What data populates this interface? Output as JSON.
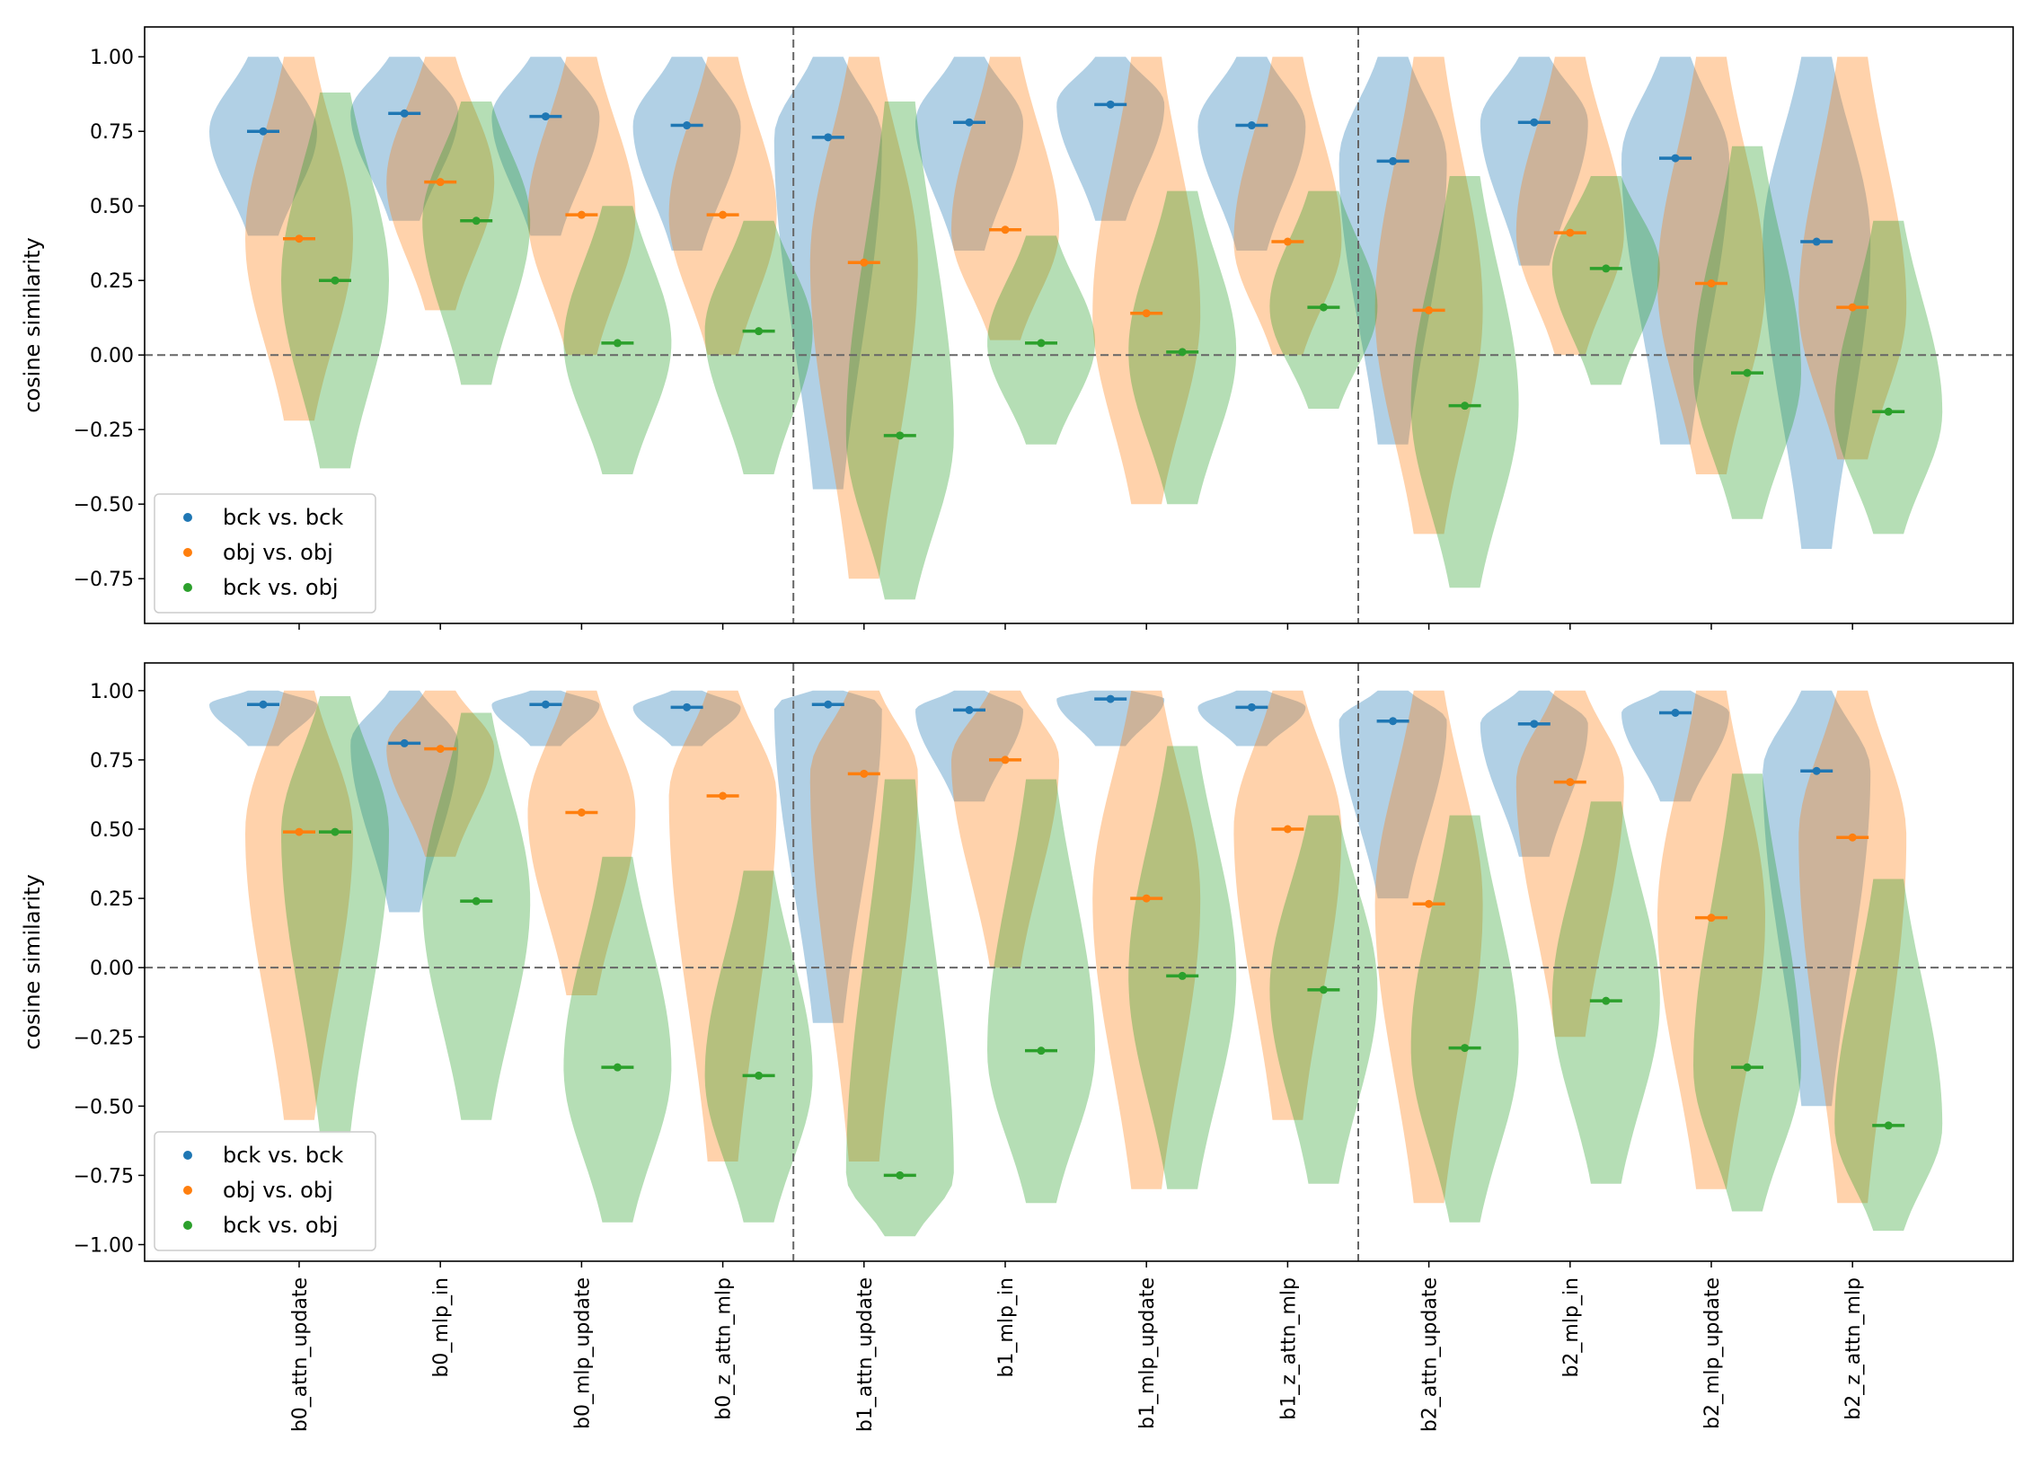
{
  "chart_data": [
    {
      "type": "violin",
      "panel": "top",
      "ylabel": "cosine similarity",
      "ylim": [
        -0.9,
        1.1
      ],
      "yticks": [
        -0.75,
        -0.5,
        -0.25,
        0.0,
        0.25,
        0.5,
        0.75,
        1.0
      ],
      "ytick_labels": [
        "−0.75",
        "−0.50",
        "−0.25",
        "0.00",
        "0.25",
        "0.50",
        "0.75",
        "1.00"
      ],
      "reference_line": 0.0,
      "group_separators_after": [
        4,
        8
      ],
      "legend": {
        "placement": "lower-left",
        "entries": [
          "bck vs. bck",
          "obj vs. obj",
          "bck vs. obj"
        ]
      },
      "series": [
        {
          "name": "bck vs. bck",
          "color": "#1f77b4",
          "means": [
            0.75,
            0.81,
            0.8,
            0.77,
            0.73,
            0.78,
            0.84,
            0.77,
            0.65,
            0.78,
            0.66,
            0.38
          ],
          "ranges": [
            [
              0.4,
              1.0
            ],
            [
              0.45,
              1.0
            ],
            [
              0.4,
              1.0
            ],
            [
              0.35,
              1.0
            ],
            [
              -0.45,
              1.0
            ],
            [
              0.35,
              1.0
            ],
            [
              0.45,
              1.0
            ],
            [
              0.35,
              1.0
            ],
            [
              -0.3,
              1.0
            ],
            [
              0.3,
              1.0
            ],
            [
              -0.3,
              1.0
            ],
            [
              -0.65,
              1.0
            ]
          ]
        },
        {
          "name": "obj vs. obj",
          "color": "#ff7f0e",
          "means": [
            0.39,
            0.58,
            0.47,
            0.47,
            0.31,
            0.42,
            0.14,
            0.38,
            0.15,
            0.41,
            0.24,
            0.16
          ],
          "ranges": [
            [
              -0.22,
              1.0
            ],
            [
              0.15,
              1.0
            ],
            [
              0.0,
              1.0
            ],
            [
              0.0,
              1.0
            ],
            [
              -0.75,
              1.0
            ],
            [
              0.05,
              1.0
            ],
            [
              -0.5,
              1.0
            ],
            [
              0.0,
              1.0
            ],
            [
              -0.6,
              1.0
            ],
            [
              0.0,
              1.0
            ],
            [
              -0.4,
              1.0
            ],
            [
              -0.35,
              1.0
            ]
          ]
        },
        {
          "name": "bck vs. obj",
          "color": "#2ca02c",
          "means": [
            0.25,
            0.45,
            0.04,
            0.08,
            -0.27,
            0.04,
            0.01,
            0.16,
            -0.17,
            0.29,
            -0.06,
            -0.19
          ],
          "ranges": [
            [
              -0.38,
              0.88
            ],
            [
              -0.1,
              0.85
            ],
            [
              -0.4,
              0.5
            ],
            [
              -0.4,
              0.45
            ],
            [
              -0.82,
              0.85
            ],
            [
              -0.3,
              0.4
            ],
            [
              -0.5,
              0.55
            ],
            [
              -0.18,
              0.55
            ],
            [
              -0.78,
              0.6
            ],
            [
              -0.1,
              0.6
            ],
            [
              -0.55,
              0.7
            ],
            [
              -0.6,
              0.45
            ]
          ]
        }
      ]
    },
    {
      "type": "violin",
      "panel": "bottom",
      "ylabel": "cosine similarity",
      "ylim": [
        -1.06,
        1.1
      ],
      "yticks": [
        -1.0,
        -0.75,
        -0.5,
        -0.25,
        0.0,
        0.25,
        0.5,
        0.75,
        1.0
      ],
      "ytick_labels": [
        "−1.00",
        "−0.75",
        "−0.50",
        "−0.25",
        "0.00",
        "0.25",
        "0.50",
        "0.75",
        "1.00"
      ],
      "reference_line": 0.0,
      "group_separators_after": [
        4,
        8
      ],
      "legend": {
        "placement": "lower-left",
        "entries": [
          "bck vs. bck",
          "obj vs. obj",
          "bck vs. obj"
        ]
      },
      "categories": [
        "b0_attn_update",
        "b0_mlp_in",
        "b0_mlp_update",
        "b0_z_attn_mlp",
        "b1_attn_update",
        "b1_mlp_in",
        "b1_mlp_update",
        "b1_z_attn_mlp",
        "b2_attn_update",
        "b2_mlp_in",
        "b2_mlp_update",
        "b2_z_attn_mlp"
      ],
      "series": [
        {
          "name": "bck vs. bck",
          "color": "#1f77b4",
          "means": [
            0.95,
            0.81,
            0.95,
            0.94,
            0.95,
            0.93,
            0.97,
            0.94,
            0.89,
            0.88,
            0.92,
            0.71
          ],
          "ranges": [
            [
              0.8,
              1.0
            ],
            [
              0.2,
              1.0
            ],
            [
              0.8,
              1.0
            ],
            [
              0.8,
              1.0
            ],
            [
              -0.2,
              1.0
            ],
            [
              0.6,
              1.0
            ],
            [
              0.8,
              1.0
            ],
            [
              0.8,
              1.0
            ],
            [
              0.25,
              1.0
            ],
            [
              0.4,
              1.0
            ],
            [
              0.6,
              1.0
            ],
            [
              -0.5,
              1.0
            ]
          ]
        },
        {
          "name": "obj vs. obj",
          "color": "#ff7f0e",
          "means": [
            0.49,
            0.79,
            0.56,
            0.62,
            0.7,
            0.75,
            0.25,
            0.5,
            0.23,
            0.67,
            0.18,
            0.47
          ],
          "ranges": [
            [
              -0.55,
              1.0
            ],
            [
              0.4,
              1.0
            ],
            [
              -0.1,
              1.0
            ],
            [
              -0.7,
              1.0
            ],
            [
              -0.7,
              1.0
            ],
            [
              0.0,
              1.0
            ],
            [
              -0.8,
              1.0
            ],
            [
              -0.55,
              1.0
            ],
            [
              -0.85,
              1.0
            ],
            [
              -0.25,
              1.0
            ],
            [
              -0.8,
              1.0
            ],
            [
              -0.85,
              1.0
            ]
          ]
        },
        {
          "name": "bck vs. obj",
          "color": "#2ca02c",
          "means": [
            0.49,
            0.24,
            -0.36,
            -0.39,
            -0.75,
            -0.3,
            -0.03,
            -0.08,
            -0.29,
            -0.12,
            -0.36,
            -0.57
          ],
          "ranges": [
            [
              -0.6,
              0.98
            ],
            [
              -0.55,
              0.92
            ],
            [
              -0.92,
              0.4
            ],
            [
              -0.92,
              0.35
            ],
            [
              -0.97,
              0.68
            ],
            [
              -0.85,
              0.68
            ],
            [
              -0.8,
              0.8
            ],
            [
              -0.78,
              0.55
            ],
            [
              -0.92,
              0.55
            ],
            [
              -0.78,
              0.6
            ],
            [
              -0.88,
              0.7
            ],
            [
              -0.95,
              0.32
            ]
          ]
        }
      ]
    }
  ]
}
